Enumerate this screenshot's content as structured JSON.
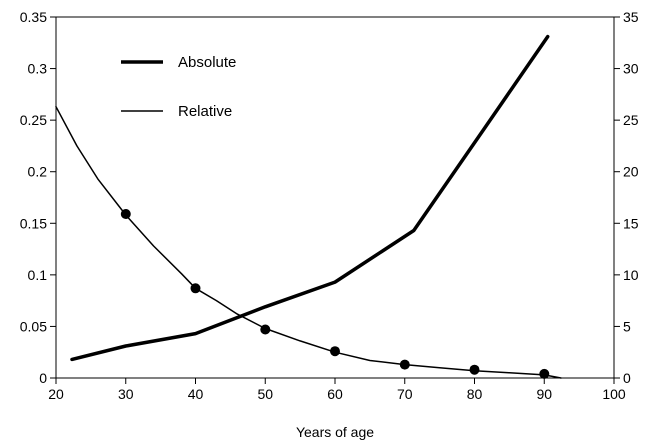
{
  "chart_data": {
    "type": "line",
    "title": "",
    "xlabel": "Years of age",
    "ylabel_left": "",
    "ylabel_right": "",
    "xlim": [
      20,
      100
    ],
    "ylim_left": [
      0,
      0.35
    ],
    "ylim_right": [
      0,
      35
    ],
    "grid": false,
    "legend_position": "top-left",
    "x_ticks": [
      "20",
      "30",
      "40",
      "50",
      "60",
      "70",
      "80",
      "90",
      "100"
    ],
    "y_left_ticks": [
      "0",
      "0.05",
      "0.1",
      "0.15",
      "0.2",
      "0.25",
      "0.3",
      "0.35"
    ],
    "y_right_ticks": [
      "0",
      "5",
      "10",
      "15",
      "20",
      "25",
      "30",
      "35"
    ],
    "series": [
      {
        "name": "Absolute",
        "axis": "right",
        "style": "thick",
        "color": "#000000",
        "x": [
          22.3,
          30,
          40,
          50,
          60,
          71.3,
          80,
          90.5
        ],
        "y": [
          1.8,
          3.1,
          4.3,
          6.9,
          9.3,
          14.3,
          22.8,
          33.1
        ]
      },
      {
        "name": "Relative",
        "axis": "left",
        "style": "thin",
        "color": "#000000",
        "x": [
          20,
          23,
          26,
          30,
          34,
          38,
          40,
          43,
          46,
          50,
          55,
          60,
          65,
          70,
          75,
          80,
          85,
          90,
          92.4
        ],
        "y": [
          0.263,
          0.225,
          0.193,
          0.158,
          0.128,
          0.101,
          0.087,
          0.075,
          0.062,
          0.048,
          0.036,
          0.025,
          0.017,
          0.013,
          0.01,
          0.007,
          0.005,
          0.003,
          0.0
        ],
        "markers": {
          "x": [
            30,
            40,
            50,
            60,
            70,
            80,
            90
          ],
          "y": [
            0.159,
            0.087,
            0.047,
            0.026,
            0.013,
            0.008,
            0.004
          ]
        }
      }
    ]
  }
}
